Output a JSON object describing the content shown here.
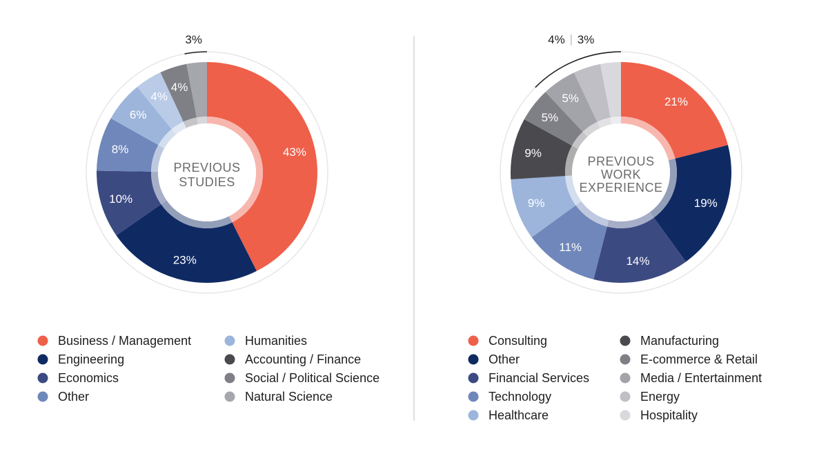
{
  "chart_data": [
    {
      "type": "pie",
      "center_label": [
        "PREVIOUS",
        "STUDIES"
      ],
      "categories": [
        "Business / Management",
        "Engineering",
        "Economics",
        "Other",
        "Humanities",
        "Accounting / Finance",
        "Social / Political Science",
        "Natural Science"
      ],
      "values": [
        43,
        23,
        10,
        8,
        6,
        4,
        4,
        3
      ],
      "value_labels": [
        "43%",
        "23%",
        "10%",
        "8%",
        "6%",
        "4%",
        "4%",
        ""
      ],
      "colors": [
        "#ee604a",
        "#0f2a63",
        "#3c4a82",
        "#6f87ba",
        "#9db5db",
        "#b9cbe7",
        "#7f7f86",
        "#a6a6ad"
      ],
      "callout": [
        "3%"
      ],
      "legend_columns": [
        [
          "Business / Management",
          "Engineering",
          "Economics",
          "Other"
        ],
        [
          "Humanities",
          "Accounting / Finance",
          "Social / Political Science",
          "Natural Science"
        ]
      ],
      "legend_colors": [
        [
          "#ee604a",
          "#0f2a63",
          "#3c4a82",
          "#6f87ba"
        ],
        [
          "#9db5db",
          "#4a4a4e",
          "#7f7f86",
          "#a6a6ad"
        ]
      ]
    },
    {
      "type": "pie",
      "center_label": [
        "PREVIOUS",
        "WORK",
        "EXPERIENCE"
      ],
      "categories": [
        "Consulting",
        "Other",
        "Financial Services",
        "Technology",
        "Healthcare",
        "Manufacturing",
        "E-commerce & Retail",
        "Media / Entertainment",
        "Energy",
        "Hospitality"
      ],
      "values": [
        21,
        19,
        14,
        11,
        9,
        9,
        5,
        5,
        4,
        3
      ],
      "value_labels": [
        "21%",
        "19%",
        "14%",
        "11%",
        "9%",
        "9%",
        "5%",
        "5%",
        "",
        ""
      ],
      "colors": [
        "#ee604a",
        "#0f2a63",
        "#3c4a82",
        "#6f87ba",
        "#9db5db",
        "#4a4a4e",
        "#7f7f86",
        "#a3a3aa",
        "#bfbfc5",
        "#d8d8dd"
      ],
      "callout": [
        "4%",
        "|",
        "3%"
      ],
      "legend_columns": [
        [
          "Consulting",
          "Other",
          "Financial Services",
          "Technology",
          "Healthcare"
        ],
        [
          "Manufacturing",
          "E-commerce & Retail",
          "Media / Entertainment",
          "Energy",
          "Hospitality"
        ]
      ],
      "legend_colors": [
        [
          "#ee604a",
          "#0f2a63",
          "#3c4a82",
          "#6f87ba",
          "#9db5db"
        ],
        [
          "#4a4a4e",
          "#7f7f86",
          "#a3a3aa",
          "#bfbfc5",
          "#d8d8dd"
        ]
      ]
    }
  ]
}
